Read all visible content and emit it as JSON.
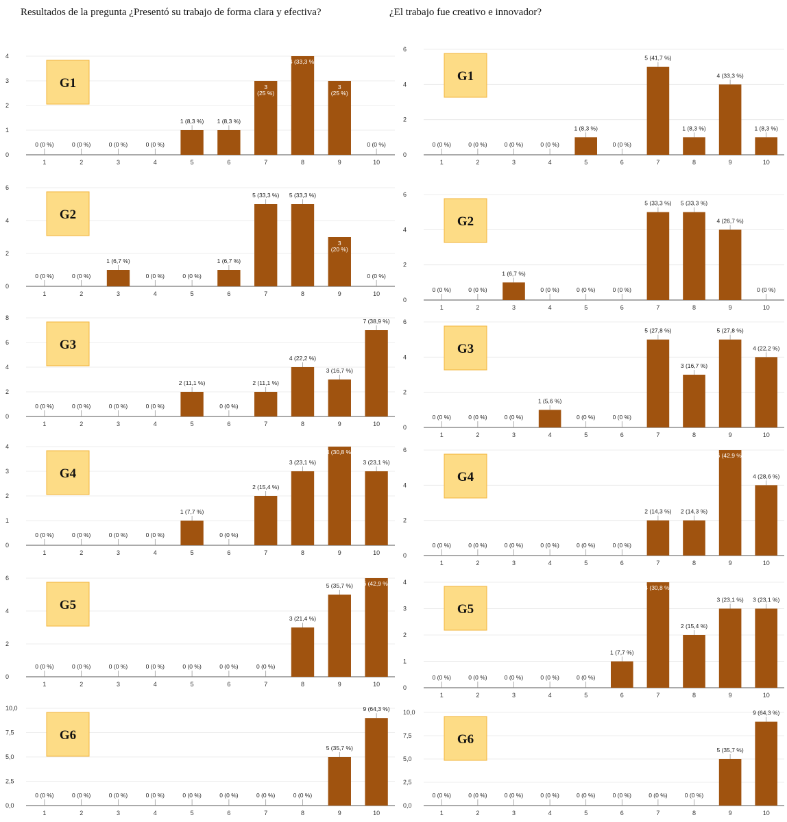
{
  "headings": {
    "left": "Resultados de la pregunta ¿Presentó su trabajo de forma clara y efectiva?",
    "right": "¿El trabajo fue creativo e innovador?"
  },
  "colors": {
    "bar": "#a0530f",
    "grid": "#e6e6e6",
    "axis": "#555555",
    "group_box_fill": "#fddc86",
    "group_box_stroke": "#f2b43c"
  },
  "chart_data": [
    {
      "type": "bar",
      "title": "",
      "group": "G1",
      "categories": [
        "1",
        "2",
        "3",
        "4",
        "5",
        "6",
        "7",
        "8",
        "9",
        "10"
      ],
      "values": [
        0,
        0,
        0,
        0,
        1,
        1,
        3,
        4,
        3,
        0
      ],
      "labels": [
        "0 (0 %)",
        "0 (0 %)",
        "0 (0 %)",
        "0 (0 %)",
        "1 (8,3 %)",
        "1 (8,3 %)",
        "3\n(25 %)",
        "4 (33,3 %)",
        "3\n(25 %)",
        "0 (0 %)"
      ],
      "ylim": [
        0,
        4
      ],
      "yticks": [
        "0",
        "1",
        "2",
        "3",
        "4"
      ]
    },
    {
      "type": "bar",
      "title": "",
      "group": "G1",
      "categories": [
        "1",
        "2",
        "3",
        "4",
        "5",
        "6",
        "7",
        "8",
        "9",
        "10"
      ],
      "values": [
        0,
        0,
        0,
        0,
        1,
        0,
        5,
        1,
        4,
        1
      ],
      "labels": [
        "0 (0 %)",
        "0 (0 %)",
        "0 (0 %)",
        "0 (0 %)",
        "1 (8,3 %)",
        "0 (0 %)",
        "5 (41,7 %)",
        "1 (8,3 %)",
        "4 (33,3 %)",
        "1 (8,3 %)"
      ],
      "ylim": [
        0,
        6
      ],
      "yticks": [
        "0",
        "2",
        "4",
        "6"
      ]
    },
    {
      "type": "bar",
      "title": "",
      "group": "G2",
      "categories": [
        "1",
        "2",
        "3",
        "4",
        "5",
        "6",
        "7",
        "8",
        "9",
        "10"
      ],
      "values": [
        0,
        0,
        1,
        0,
        0,
        1,
        5,
        5,
        3,
        0
      ],
      "labels": [
        "0 (0 %)",
        "0 (0 %)",
        "1 (6,7 %)",
        "0 (0 %)",
        "0 (0 %)",
        "1 (6,7 %)",
        "5 (33,3 %)",
        "5 (33,3 %)",
        "3\n(20 %)",
        "0 (0 %)"
      ],
      "ylim": [
        0,
        6
      ],
      "yticks": [
        "0",
        "2",
        "4",
        "6"
      ]
    },
    {
      "type": "bar",
      "title": "",
      "group": "G2",
      "categories": [
        "1",
        "2",
        "3",
        "4",
        "5",
        "6",
        "7",
        "8",
        "9",
        "10"
      ],
      "values": [
        0,
        0,
        1,
        0,
        0,
        0,
        5,
        5,
        4,
        0
      ],
      "labels": [
        "0 (0 %)",
        "0 (0 %)",
        "1 (6,7 %)",
        "0 (0 %)",
        "0 (0 %)",
        "0 (0 %)",
        "5 (33,3 %)",
        "5 (33,3 %)",
        "4 (26,7 %)",
        "0 (0 %)"
      ],
      "ylim": [
        0,
        6
      ],
      "yticks": [
        "0",
        "2",
        "4",
        "6"
      ]
    },
    {
      "type": "bar",
      "title": "",
      "group": "G3",
      "categories": [
        "1",
        "2",
        "3",
        "4",
        "5",
        "6",
        "7",
        "8",
        "9",
        "10"
      ],
      "values": [
        0,
        0,
        0,
        0,
        2,
        0,
        2,
        4,
        3,
        7
      ],
      "labels": [
        "0 (0 %)",
        "0 (0 %)",
        "0 (0 %)",
        "0 (0 %)",
        "2 (11,1 %)",
        "0 (0 %)",
        "2 (11,1 %)",
        "4 (22,2 %)",
        "3 (16,7 %)",
        "7 (38,9 %)"
      ],
      "ylim": [
        0,
        8
      ],
      "yticks": [
        "0",
        "2",
        "4",
        "6",
        "8"
      ]
    },
    {
      "type": "bar",
      "title": "",
      "group": "G3",
      "categories": [
        "1",
        "2",
        "3",
        "4",
        "5",
        "6",
        "7",
        "8",
        "9",
        "10"
      ],
      "values": [
        0,
        0,
        0,
        1,
        0,
        0,
        5,
        3,
        5,
        4
      ],
      "labels": [
        "0 (0 %)",
        "0 (0 %)",
        "0 (0 %)",
        "1 (5,6 %)",
        "0 (0 %)",
        "0 (0 %)",
        "5 (27,8 %)",
        "3 (16,7 %)",
        "5 (27,8 %)",
        "4 (22,2 %)"
      ],
      "ylim": [
        0,
        6
      ],
      "yticks": [
        "0",
        "2",
        "4",
        "6"
      ]
    },
    {
      "type": "bar",
      "title": "",
      "group": "G4",
      "categories": [
        "1",
        "2",
        "3",
        "4",
        "5",
        "6",
        "7",
        "8",
        "9",
        "10"
      ],
      "values": [
        0,
        0,
        0,
        0,
        1,
        0,
        2,
        3,
        4,
        3
      ],
      "labels": [
        "0 (0 %)",
        "0 (0 %)",
        "0 (0 %)",
        "0 (0 %)",
        "1 (7,7 %)",
        "0 (0 %)",
        "2 (15,4 %)",
        "3 (23,1 %)",
        "4 (30,8 %)",
        "3 (23,1 %)"
      ],
      "ylim": [
        0,
        4
      ],
      "yticks": [
        "0",
        "1",
        "2",
        "3",
        "4"
      ]
    },
    {
      "type": "bar",
      "title": "",
      "group": "G4",
      "categories": [
        "1",
        "2",
        "3",
        "4",
        "5",
        "6",
        "7",
        "8",
        "9",
        "10"
      ],
      "values": [
        0,
        0,
        0,
        0,
        0,
        0,
        2,
        2,
        6,
        4
      ],
      "labels": [
        "0 (0 %)",
        "0 (0 %)",
        "0 (0 %)",
        "0 (0 %)",
        "0 (0 %)",
        "0 (0 %)",
        "2 (14,3 %)",
        "2 (14,3 %)",
        "6 (42,9 %)",
        "4 (28,6 %)"
      ],
      "ylim": [
        0,
        6
      ],
      "yticks": [
        "0",
        "2",
        "4",
        "6"
      ]
    },
    {
      "type": "bar",
      "title": "",
      "group": "G5",
      "categories": [
        "1",
        "2",
        "3",
        "4",
        "5",
        "6",
        "7",
        "8",
        "9",
        "10"
      ],
      "values": [
        0,
        0,
        0,
        0,
        0,
        0,
        0,
        3,
        5,
        6
      ],
      "labels": [
        "0 (0 %)",
        "0 (0 %)",
        "0 (0 %)",
        "0 (0 %)",
        "0 (0 %)",
        "0 (0 %)",
        "0 (0 %)",
        "3 (21,4 %)",
        "5 (35,7 %)",
        "6 (42,9 %)"
      ],
      "ylim": [
        0,
        6
      ],
      "yticks": [
        "0",
        "2",
        "4",
        "6"
      ]
    },
    {
      "type": "bar",
      "title": "",
      "group": "G5",
      "categories": [
        "1",
        "2",
        "3",
        "4",
        "5",
        "6",
        "7",
        "8",
        "9",
        "10"
      ],
      "values": [
        0,
        0,
        0,
        0,
        0,
        1,
        4,
        2,
        3,
        3
      ],
      "labels": [
        "0 (0 %)",
        "0 (0 %)",
        "0 (0 %)",
        "0 (0 %)",
        "0 (0 %)",
        "1 (7,7 %)",
        "4 (30,8 %)",
        "2 (15,4 %)",
        "3 (23,1 %)",
        "3 (23,1 %)"
      ],
      "ylim": [
        0,
        4
      ],
      "yticks": [
        "0",
        "1",
        "2",
        "3",
        "4"
      ]
    },
    {
      "type": "bar",
      "title": "",
      "group": "G6",
      "categories": [
        "1",
        "2",
        "3",
        "4",
        "5",
        "6",
        "7",
        "8",
        "9",
        "10"
      ],
      "values": [
        0,
        0,
        0,
        0,
        0,
        0,
        0,
        0,
        5,
        9
      ],
      "labels": [
        "0 (0 %)",
        "0 (0 %)",
        "0 (0 %)",
        "0 (0 %)",
        "0 (0 %)",
        "0 (0 %)",
        "0 (0 %)",
        "0 (0 %)",
        "5 (35,7 %)",
        "9 (64,3 %)"
      ],
      "ylim": [
        0,
        10
      ],
      "yticks": [
        "0,0",
        "2,5",
        "5,0",
        "7,5",
        "10,0"
      ]
    },
    {
      "type": "bar",
      "title": "",
      "group": "G6",
      "categories": [
        "1",
        "2",
        "3",
        "4",
        "5",
        "6",
        "7",
        "8",
        "9",
        "10"
      ],
      "values": [
        0,
        0,
        0,
        0,
        0,
        0,
        0,
        0,
        5,
        9
      ],
      "labels": [
        "0 (0 %)",
        "0 (0 %)",
        "0 (0 %)",
        "0 (0 %)",
        "0 (0 %)",
        "0 (0 %)",
        "0 (0 %)",
        "0 (0 %)",
        "5 (35,7 %)",
        "9 (64,3 %)"
      ],
      "ylim": [
        0,
        10
      ],
      "yticks": [
        "0,0",
        "2,5",
        "5,0",
        "7,5",
        "10,0"
      ]
    }
  ]
}
